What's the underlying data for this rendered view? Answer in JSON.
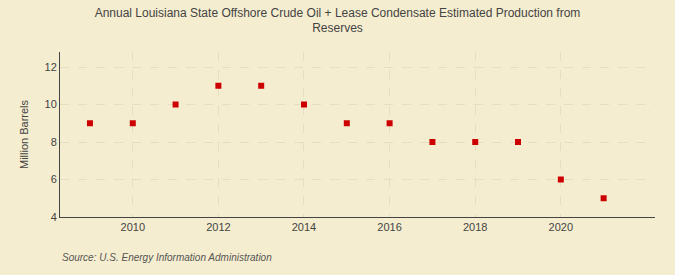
{
  "chart_data": {
    "type": "scatter",
    "title": "Annual Louisiana State Offshore Crude Oil + Lease Condensate Estimated Production from\nReserves",
    "ylabel": "Million Barrels",
    "annotations": [
      "Source: U.S. Energy Information Administration"
    ],
    "x": [
      2009,
      2010,
      2011,
      2012,
      2013,
      2014,
      2015,
      2016,
      2017,
      2018,
      2019,
      2020,
      2021
    ],
    "values": [
      9,
      9,
      10,
      11,
      11,
      10,
      9,
      9,
      8,
      8,
      8,
      6,
      5
    ],
    "color": "#cc0000",
    "marker": "square",
    "xlim": [
      2008.3,
      2022.2
    ],
    "xticks": [
      2010,
      2012,
      2014,
      2016,
      2018,
      2020
    ],
    "ylim": [
      4,
      12.8
    ],
    "yticks": [
      4,
      6,
      8,
      10,
      12
    ],
    "grid": true
  }
}
